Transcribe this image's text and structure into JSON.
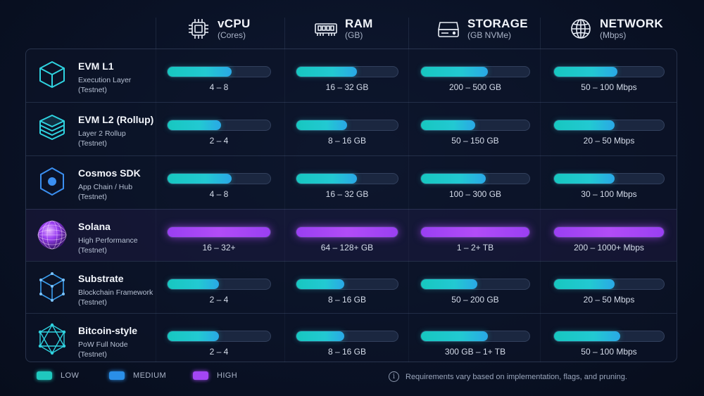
{
  "columns": [
    {
      "title": "vCPU",
      "subtitle": "(Cores)",
      "icon": "cpu-icon"
    },
    {
      "title": "RAM",
      "subtitle": "(GB)",
      "icon": "ram-icon"
    },
    {
      "title": "STORAGE",
      "subtitle": "(GB NVMe)",
      "icon": "storage-icon"
    },
    {
      "title": "NETWORK",
      "subtitle": "(Mbps)",
      "icon": "globe-icon"
    }
  ],
  "rows": [
    {
      "name": "EVM L1",
      "sub1": "Execution Layer",
      "sub2": "(Testnet)",
      "icon": "cube-icon",
      "level": "low",
      "cpu": "4 – 8",
      "ram": "16 – 32 GB",
      "storage": "200 – 500 GB",
      "network": "50 – 100 Mbps",
      "fills": [
        0.62,
        0.6,
        0.62,
        0.58
      ]
    },
    {
      "name": "EVM L2 (Rollup)",
      "sub1": "Layer 2 Rollup",
      "sub2": "(Testnet)",
      "icon": "layers-icon",
      "level": "low",
      "cpu": "2 – 4",
      "ram": "8 – 16 GB",
      "storage": "50 – 150 GB",
      "network": "20 – 50 Mbps",
      "fills": [
        0.52,
        0.5,
        0.5,
        0.55
      ]
    },
    {
      "name": "Cosmos SDK",
      "sub1": "App Chain / Hub",
      "sub2": "(Testnet)",
      "icon": "hexagon-icon",
      "level": "low",
      "cpu": "4 – 8",
      "ram": "16 – 32 GB",
      "storage": "100 – 300 GB",
      "network": "30 – 100 Mbps",
      "fills": [
        0.62,
        0.6,
        0.6,
        0.55
      ]
    },
    {
      "name": "Solana",
      "sub1": "High Performance",
      "sub2": "(Testnet)",
      "icon": "sphere-icon",
      "level": "high",
      "cpu": "16 – 32+",
      "ram": "64 – 128+ GB",
      "storage": "1 – 2+ TB",
      "network": "200 – 1000+ Mbps",
      "fills": [
        1.0,
        1.0,
        1.0,
        1.0
      ]
    },
    {
      "name": "Substrate",
      "sub1": "Blockchain Framework",
      "sub2": "(Testnet)",
      "icon": "wireframe-cube-icon",
      "level": "low",
      "cpu": "2 – 4",
      "ram": "8 – 16 GB",
      "storage": "50 – 200 GB",
      "network": "20 – 50 Mbps",
      "fills": [
        0.5,
        0.47,
        0.52,
        0.55
      ]
    },
    {
      "name": "Bitcoin-style",
      "sub1": "PoW Full Node",
      "sub2": "(Testnet)",
      "icon": "network-hexagon-icon",
      "level": "low",
      "cpu": "2 – 4",
      "ram": "8 – 16 GB",
      "storage": "300 GB – 1+ TB",
      "network": "50 – 100 Mbps",
      "fills": [
        0.5,
        0.47,
        0.62,
        0.6
      ]
    }
  ],
  "legend": [
    {
      "label": "LOW",
      "color": "#1fc8be"
    },
    {
      "label": "MEDIUM",
      "color": "#2a8fe8"
    },
    {
      "label": "HIGH",
      "color": "#a346f4"
    }
  ],
  "note": "Requirements vary based on implementation, flags, and pruning.",
  "note_icon": "i"
}
